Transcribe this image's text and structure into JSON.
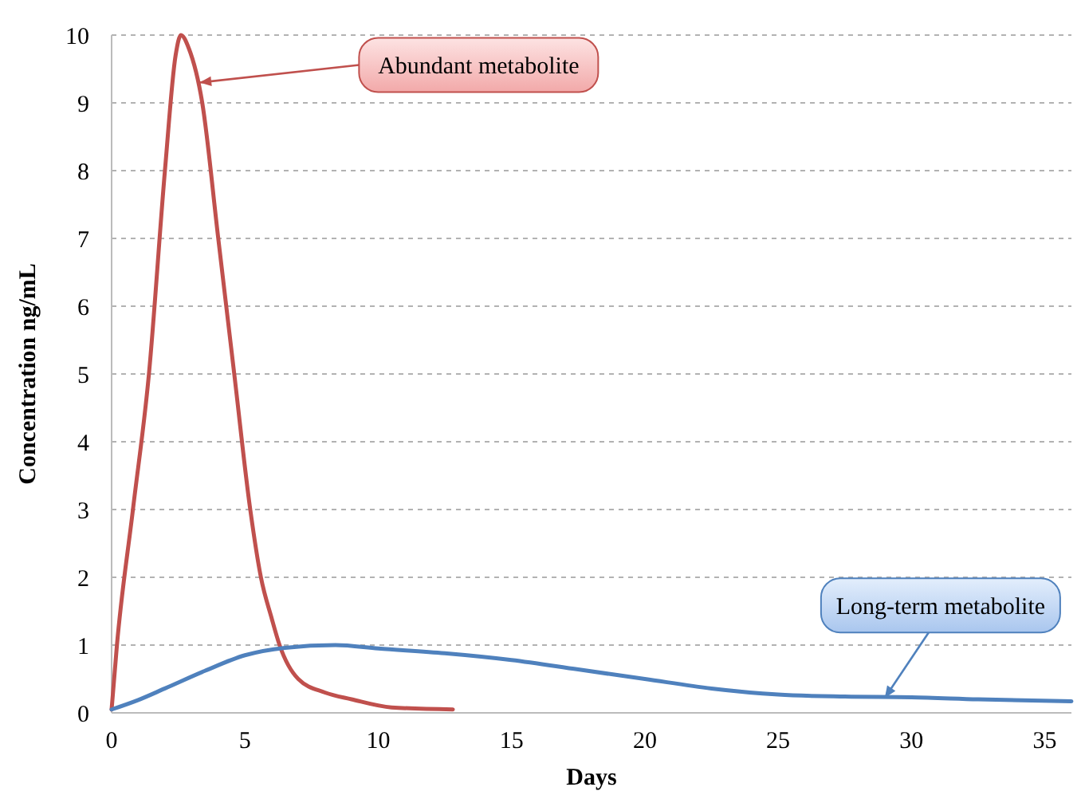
{
  "chart_data": {
    "type": "line",
    "xlabel": "Days",
    "ylabel": "Concentration ng/mL",
    "xlim": [
      0,
      36
    ],
    "xticks": [
      0,
      5,
      10,
      15,
      20,
      25,
      30,
      35
    ],
    "ylim": [
      0,
      10
    ],
    "yticks": [
      0,
      1,
      2,
      3,
      4,
      5,
      6,
      7,
      8,
      9,
      10
    ],
    "grid": "y",
    "marker": "none",
    "line_style": "solid",
    "series": [
      {
        "color": "#c0504d",
        "x": [
          0,
          0.2,
          0.8,
          1.4,
          2.0,
          2.4,
          2.6,
          2.9,
          3.4,
          4.0,
          4.6,
          5.2,
          5.6,
          6.0,
          6.3,
          7.0,
          8.0,
          9.0,
          10.5,
          12.8
        ],
        "values": [
          0.05,
          1,
          3,
          5,
          8,
          9.7,
          10,
          9.8,
          9,
          7,
          5,
          3,
          2,
          1.4,
          1,
          0.5,
          0.3,
          0.2,
          0.08,
          0.05
        ]
      },
      {
        "color": "#4f81bd",
        "x": [
          0,
          1,
          2,
          3.5,
          5,
          6.5,
          8.4,
          10,
          12.5,
          15,
          17.5,
          20,
          22.5,
          25,
          27.5,
          30,
          32.5,
          36
        ],
        "values": [
          0.05,
          0.19,
          0.36,
          0.62,
          0.85,
          0.96,
          1,
          0.95,
          0.88,
          0.78,
          0.64,
          0.5,
          0.36,
          0.27,
          0.24,
          0.23,
          0.2,
          0.17
        ]
      }
    ],
    "annotations": [
      {
        "text": "Abundant metabolite",
        "x": 3.3,
        "y": 9.3
      },
      {
        "text": "Long-term metabolite",
        "x": 29,
        "y": 0.22
      }
    ]
  }
}
